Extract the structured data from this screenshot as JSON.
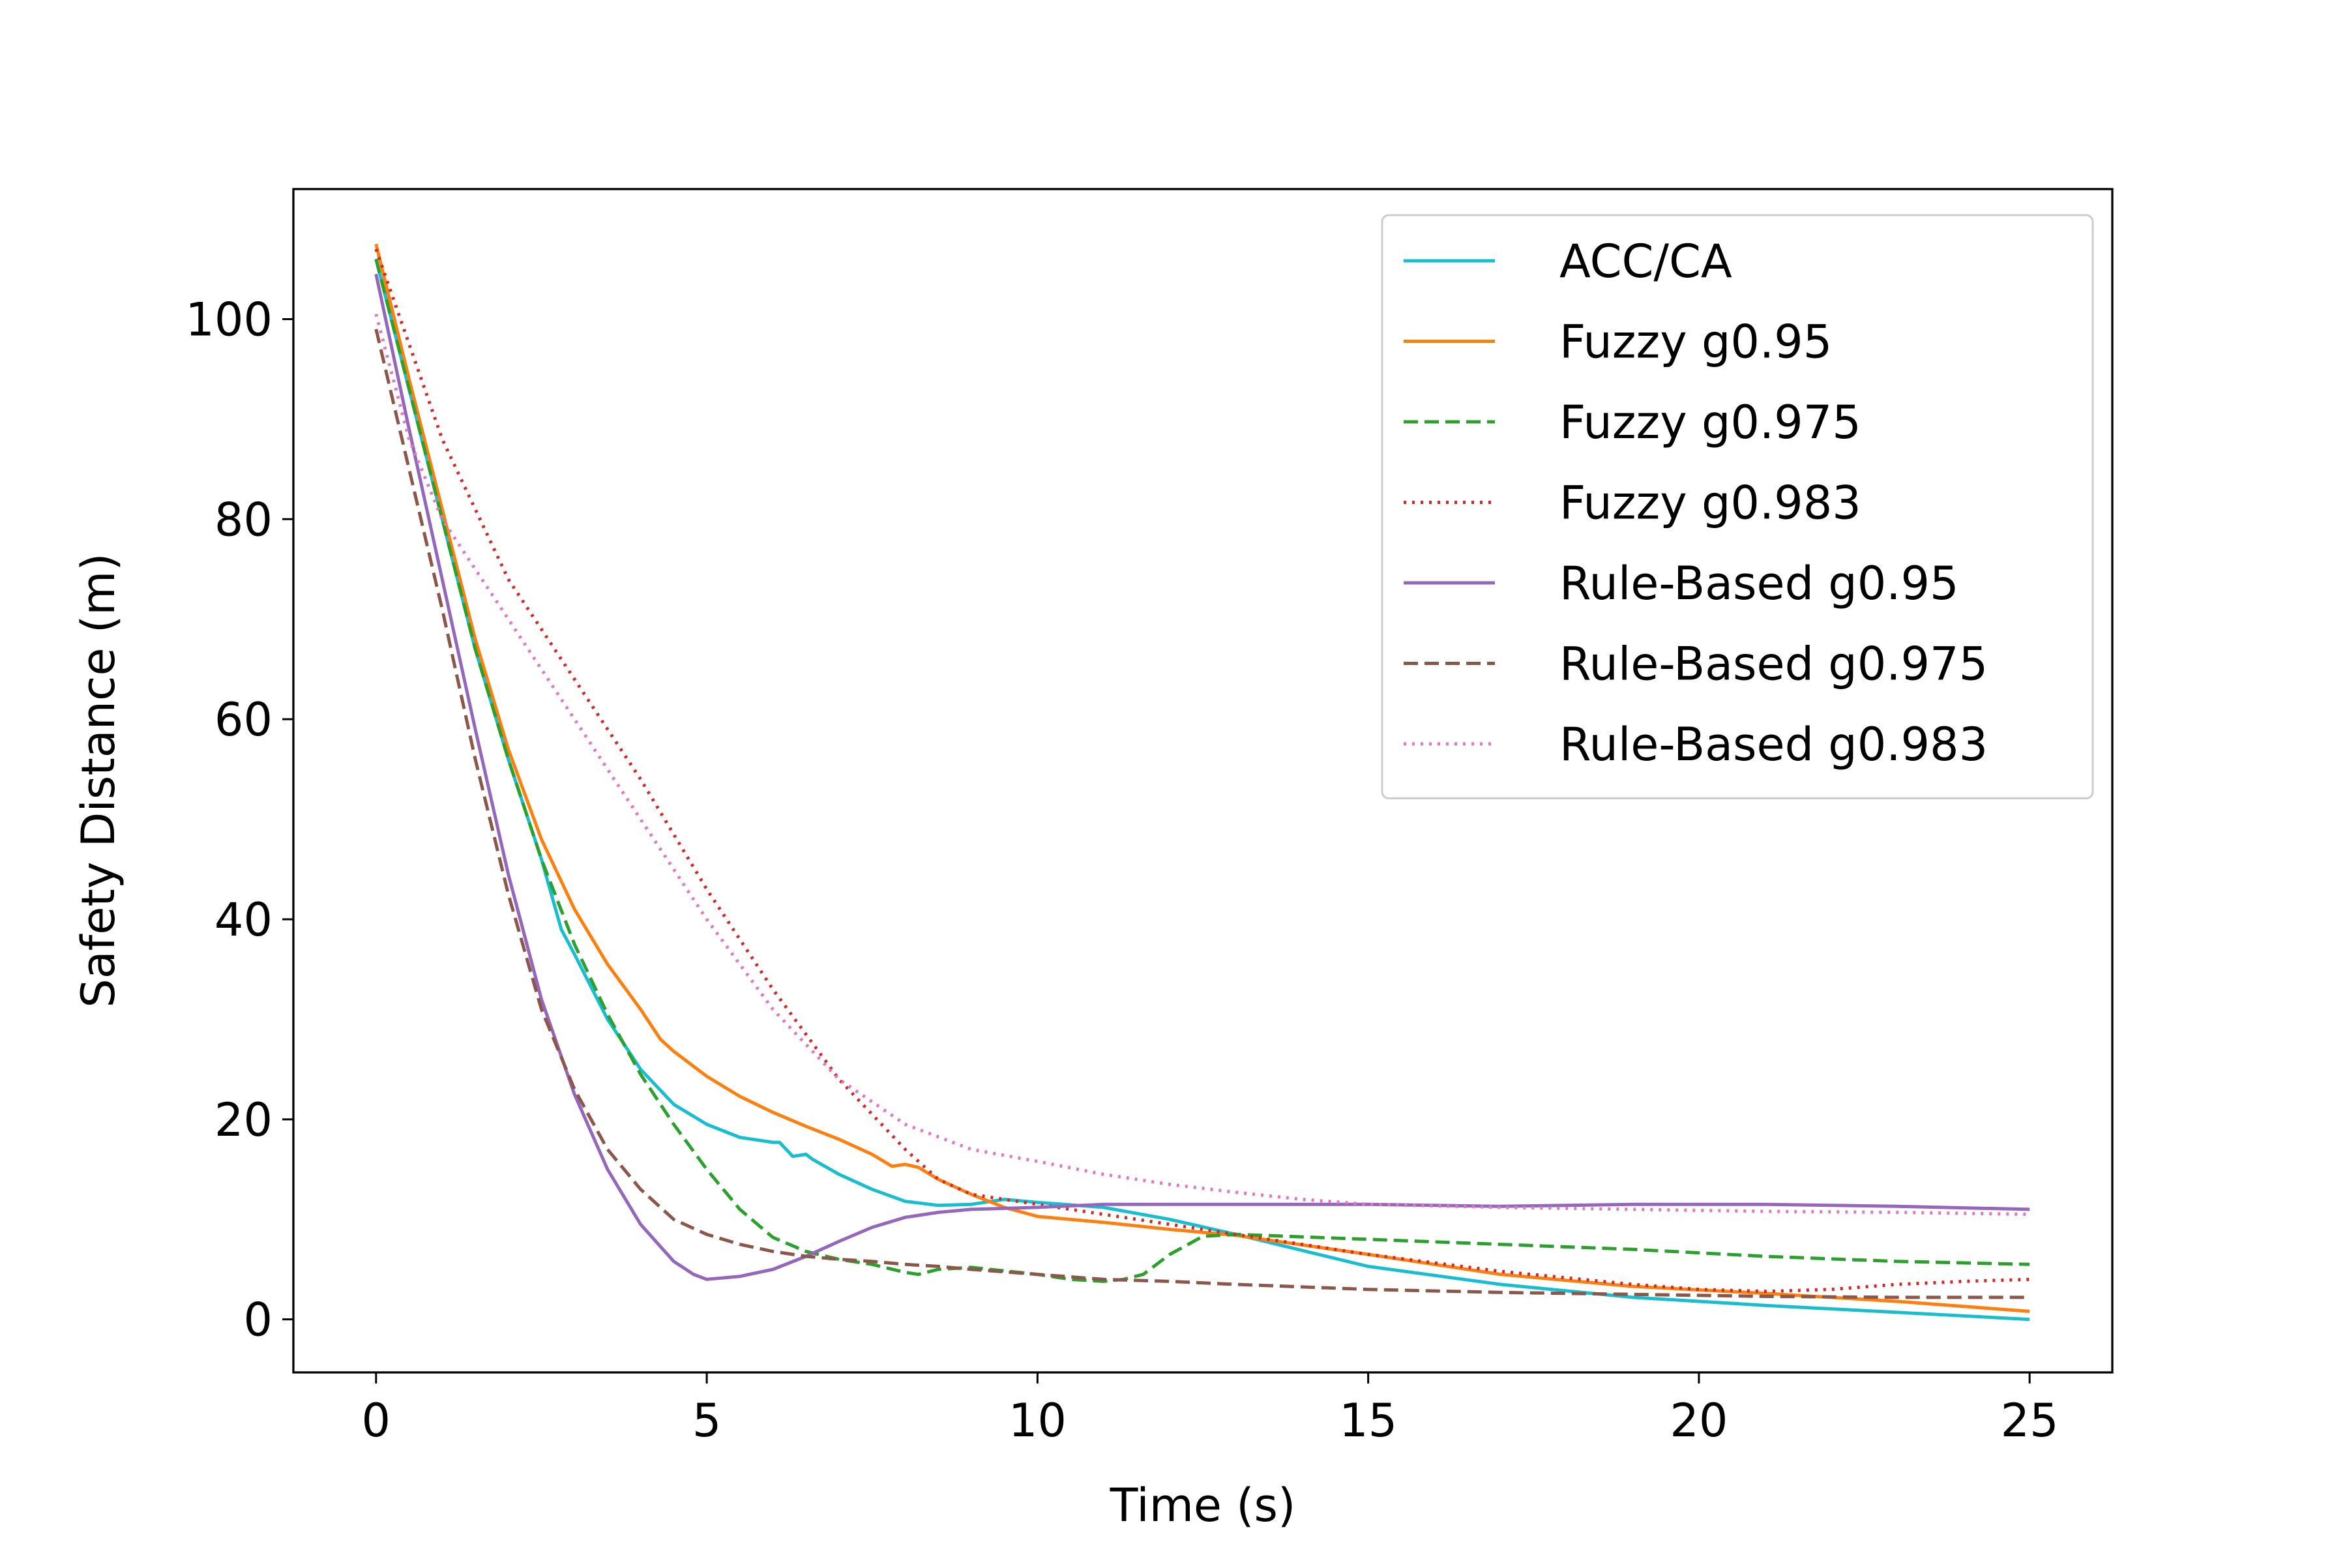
{
  "chart_data": {
    "type": "line",
    "title": "",
    "xlabel": "Time (s)",
    "ylabel": "Safety Distance (m)",
    "xlim": [
      -1.25,
      26.25
    ],
    "ylim": [
      -5.3,
      113
    ],
    "xticks": [
      0,
      5,
      10,
      15,
      20,
      25
    ],
    "yticks": [
      0,
      20,
      40,
      60,
      80,
      100
    ],
    "legend_position": "top-right",
    "series": [
      {
        "name": "ACC/CA",
        "color": "#17becf",
        "style": "solid",
        "x": [
          0,
          0.5,
          1,
          1.5,
          2,
          2.5,
          2.8,
          3,
          3.5,
          4,
          4.5,
          5,
          5.5,
          6,
          6.1,
          6.3,
          6.5,
          6.6,
          7,
          7.5,
          8,
          8.5,
          9,
          9.5,
          10,
          11,
          12,
          13,
          15,
          17,
          19,
          21,
          23,
          25
        ],
        "y": [
          106,
          93,
          80,
          67,
          56,
          46,
          39,
          36.5,
          30,
          25,
          21.5,
          19.5,
          18.2,
          17.7,
          17.7,
          16.3,
          16.5,
          16,
          14.5,
          13,
          11.8,
          11.4,
          11.5,
          12,
          11.7,
          11.2,
          10,
          8.5,
          5.3,
          3.5,
          2.2,
          1.4,
          0.7,
          0
        ]
      },
      {
        "name": "Fuzzy g0.95",
        "color": "#ff7f0e",
        "style": "solid",
        "x": [
          0,
          0.5,
          1,
          1.5,
          2,
          2.5,
          3,
          3.5,
          4,
          4.3,
          4.5,
          5,
          5.5,
          6,
          6.5,
          7,
          7.5,
          7.8,
          8,
          8.2,
          8.5,
          9,
          9.5,
          10,
          11,
          12,
          13,
          15,
          17,
          19,
          21,
          23,
          25
        ],
        "y": [
          107.5,
          94,
          81,
          68,
          57,
          48,
          41,
          35.5,
          31,
          28,
          26.8,
          24.3,
          22.3,
          20.7,
          19.3,
          18,
          16.5,
          15.3,
          15.5,
          15.2,
          14,
          12.5,
          11.2,
          10.3,
          9.7,
          9,
          8.4,
          6.5,
          4.5,
          3.3,
          2.6,
          1.8,
          0.8
        ]
      },
      {
        "name": "Fuzzy g0.975",
        "color": "#2ca02c",
        "style": "dashed",
        "x": [
          0,
          0.5,
          1,
          1.5,
          2,
          2.5,
          3,
          3.5,
          4,
          4.5,
          5,
          5.5,
          6,
          6.5,
          7,
          7.5,
          8,
          8.2,
          8.5,
          9,
          10,
          10.5,
          11,
          11.3,
          11.6,
          12,
          12.5,
          13,
          15,
          17,
          19,
          21,
          23,
          25
        ],
        "y": [
          106,
          93,
          80,
          67,
          56,
          46,
          37.5,
          30.5,
          24.5,
          19.5,
          15,
          11,
          8.2,
          6.8,
          6,
          5.5,
          4.7,
          4.5,
          5,
          5.2,
          4.5,
          4,
          3.8,
          4,
          4.5,
          6.5,
          8.3,
          8.5,
          8,
          7.5,
          7,
          6.3,
          5.8,
          5.5
        ]
      },
      {
        "name": "Fuzzy g0.983",
        "color": "#d62728",
        "style": "dotted",
        "x": [
          0,
          1,
          2,
          3,
          4,
          5,
          6,
          7,
          8,
          8.5,
          9,
          9.5,
          10,
          11,
          12,
          13,
          15,
          17,
          19,
          20,
          21,
          22,
          23,
          24,
          25
        ],
        "y": [
          107,
          88,
          74,
          64,
          54,
          43,
          33,
          24,
          17,
          14,
          12.5,
          12,
          11.5,
          10.5,
          9.5,
          8.5,
          6.5,
          4.8,
          3.5,
          3,
          2.8,
          3,
          3.5,
          3.8,
          4
        ]
      },
      {
        "name": "Rule-Based g0.95",
        "color": "#9467bd",
        "style": "solid",
        "x": [
          0,
          0.5,
          1,
          1.5,
          2,
          2.5,
          3,
          3.5,
          4,
          4.5,
          4.8,
          5,
          5.5,
          6,
          6.5,
          7,
          7.5,
          8,
          8.5,
          9,
          10,
          11,
          12,
          13,
          15,
          17,
          19,
          21,
          23,
          25
        ],
        "y": [
          104.5,
          89,
          74,
          59,
          44.5,
          32,
          22.5,
          15,
          9.5,
          5.8,
          4.5,
          4,
          4.3,
          5,
          6.3,
          7.8,
          9.2,
          10.2,
          10.7,
          11,
          11.2,
          11.5,
          11.5,
          11.5,
          11.5,
          11.3,
          11.5,
          11.5,
          11.3,
          11
        ]
      },
      {
        "name": "Rule-Based g0.975",
        "color": "#8c564b",
        "style": "dashed",
        "x": [
          0,
          0.5,
          1,
          1.5,
          2,
          2.5,
          3,
          3.5,
          4,
          4.5,
          5,
          5.5,
          6,
          6.5,
          7,
          7.5,
          8,
          8.5,
          9,
          10,
          11,
          12,
          13,
          15,
          17,
          19,
          21,
          23,
          25
        ],
        "y": [
          99,
          85,
          71,
          56,
          42.5,
          31,
          23,
          17,
          13,
          10,
          8.5,
          7.5,
          6.8,
          6.3,
          6,
          5.8,
          5.5,
          5.3,
          5,
          4.5,
          4,
          3.8,
          3.5,
          3,
          2.7,
          2.5,
          2.3,
          2.2,
          2.2
        ]
      },
      {
        "name": "Rule-Based g0.983",
        "color": "#e377c2",
        "style": "dotted",
        "x": [
          0,
          0.5,
          1,
          1.5,
          2,
          3,
          4,
          5,
          6,
          7,
          8,
          9,
          10,
          11,
          12,
          13,
          14,
          15,
          17,
          19,
          21,
          23,
          25
        ],
        "y": [
          100.5,
          88,
          80,
          75,
          70,
          60,
          50,
          40,
          31,
          24,
          19.5,
          17,
          15.8,
          14.5,
          13.5,
          12.7,
          12,
          11.5,
          11.2,
          11,
          10.8,
          10.7,
          10.5
        ]
      }
    ]
  }
}
